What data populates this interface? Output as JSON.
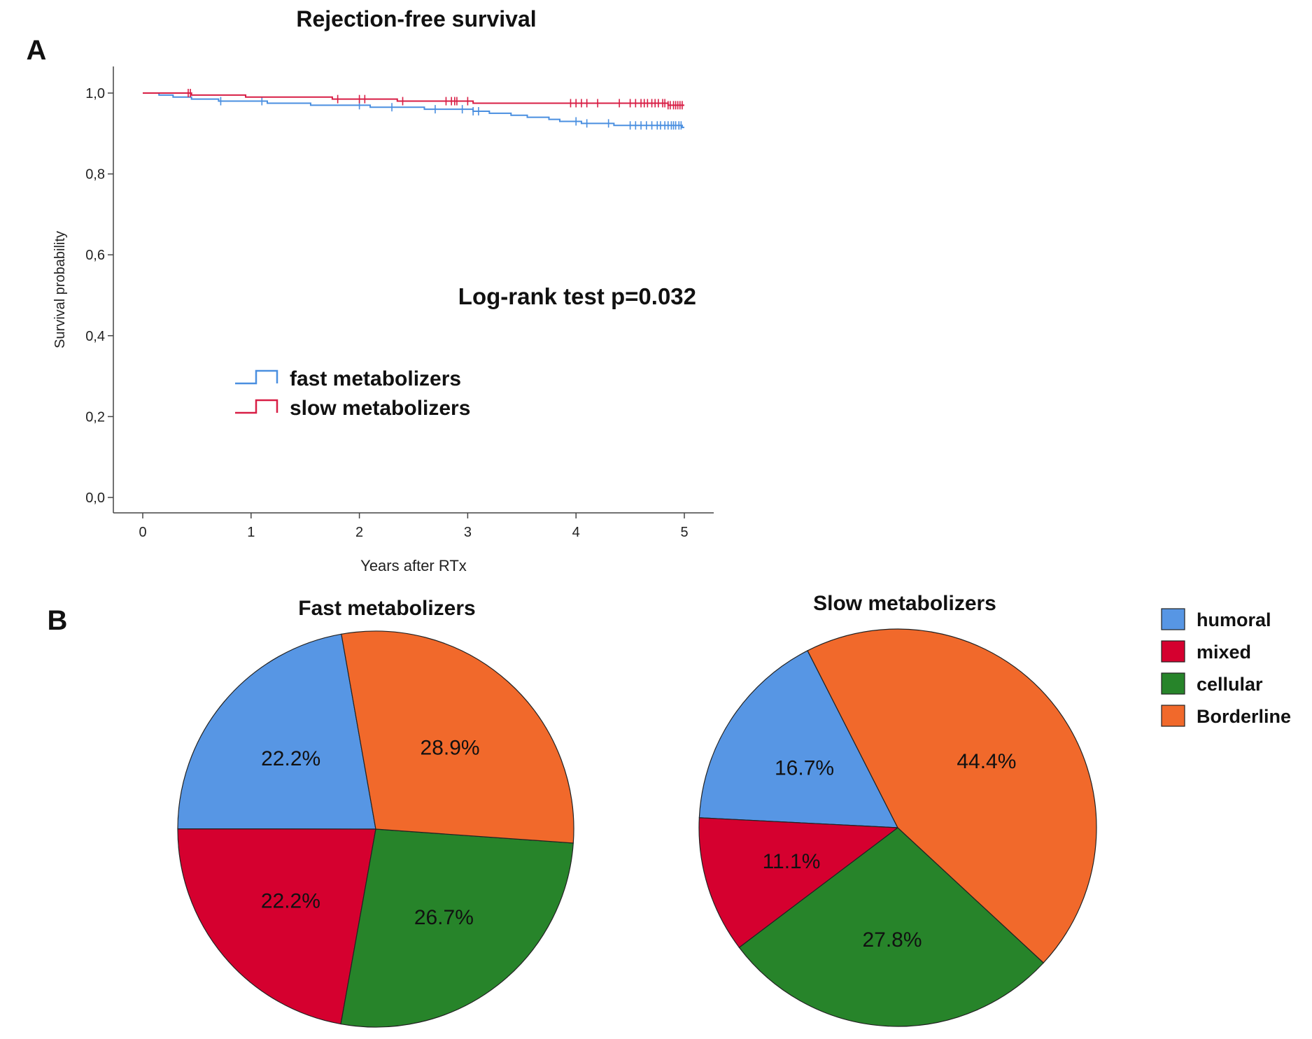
{
  "figure": {
    "panel_a_letter": "A",
    "panel_b_letter": "B"
  },
  "chart_data": [
    {
      "type": "line",
      "subtype": "kaplan-meier",
      "title": "Rejection-free survival",
      "xlabel": "Years after RTx",
      "ylabel": "Survival probability",
      "xlim": [
        0,
        5
      ],
      "ylim": [
        0,
        1
      ],
      "x_ticks": [
        "0",
        "1",
        "2",
        "3",
        "4",
        "5"
      ],
      "y_ticks": [
        "0,0",
        "0,2",
        "0,4",
        "0,6",
        "0,8",
        "1,0"
      ],
      "grid": false,
      "annotation": "Log-rank test p=0.032",
      "legend_position": "lower-left",
      "series": [
        {
          "name": "fast metabolizers",
          "color": "#4a8fe0",
          "steps": [
            [
              0,
              1.0
            ],
            [
              0.15,
              0.995
            ],
            [
              0.28,
              0.99
            ],
            [
              0.45,
              0.985
            ],
            [
              0.7,
              0.98
            ],
            [
              1.15,
              0.975
            ],
            [
              1.55,
              0.97
            ],
            [
              2.1,
              0.965
            ],
            [
              2.6,
              0.96
            ],
            [
              3.05,
              0.955
            ],
            [
              3.2,
              0.95
            ],
            [
              3.4,
              0.945
            ],
            [
              3.55,
              0.94
            ],
            [
              3.75,
              0.935
            ],
            [
              3.85,
              0.93
            ],
            [
              4.05,
              0.925
            ],
            [
              4.35,
              0.92
            ],
            [
              4.98,
              0.915
            ]
          ],
          "censors": [
            0.72,
            1.1,
            2.0,
            2.3,
            2.7,
            2.95,
            3.05,
            3.1,
            4.0,
            4.1,
            4.3,
            4.5,
            4.55,
            4.6,
            4.65,
            4.7,
            4.75,
            4.78,
            4.82,
            4.85,
            4.88,
            4.9,
            4.92,
            4.95,
            4.97
          ]
        },
        {
          "name": "slow metabolizers",
          "color": "#d81e45",
          "steps": [
            [
              0,
              1.0
            ],
            [
              0.45,
              0.995
            ],
            [
              0.95,
              0.99
            ],
            [
              1.75,
              0.985
            ],
            [
              2.35,
              0.98
            ],
            [
              3.05,
              0.975
            ],
            [
              4.85,
              0.97
            ]
          ],
          "censors": [
            0.42,
            0.44,
            1.8,
            2.0,
            2.05,
            2.4,
            2.8,
            2.85,
            2.88,
            2.9,
            3.0,
            3.95,
            4.0,
            4.05,
            4.1,
            4.2,
            4.4,
            4.5,
            4.55,
            4.6,
            4.63,
            4.66,
            4.7,
            4.73,
            4.76,
            4.8,
            4.82,
            4.85,
            4.87,
            4.9,
            4.92,
            4.94,
            4.96,
            4.98
          ]
        }
      ]
    },
    {
      "type": "pie",
      "title": "Fast metabolizers",
      "slices": [
        {
          "label": "humoral",
          "value": 22.2,
          "text": "22.2%",
          "color": "#5796e4"
        },
        {
          "label": "mixed",
          "value": 22.2,
          "text": "22.2%",
          "color": "#d5002f"
        },
        {
          "label": "cellular",
          "value": 26.7,
          "text": "26.7%",
          "color": "#27842a"
        },
        {
          "label": "Borderline",
          "value": 28.9,
          "text": "28.9%",
          "color": "#f1692b"
        }
      ]
    },
    {
      "type": "pie",
      "title": "Slow metabolizers",
      "slices": [
        {
          "label": "humoral",
          "value": 16.7,
          "text": "16.7%",
          "color": "#5796e4"
        },
        {
          "label": "mixed",
          "value": 11.1,
          "text": "11.1%",
          "color": "#d5002f"
        },
        {
          "label": "cellular",
          "value": 27.8,
          "text": "27.8%",
          "color": "#27842a"
        },
        {
          "label": "Borderline",
          "value": 44.4,
          "text": "44.4%",
          "color": "#f1692b"
        }
      ]
    }
  ],
  "pie_legend": [
    {
      "label": "humoral",
      "color": "#5796e4"
    },
    {
      "label": "mixed",
      "color": "#d5002f"
    },
    {
      "label": "cellular",
      "color": "#27842a"
    },
    {
      "label": "Borderline",
      "color": "#f1692b"
    }
  ]
}
